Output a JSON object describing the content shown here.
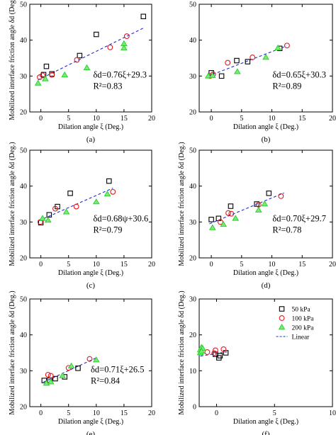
{
  "series_styles": {
    "50": {
      "marker": "square",
      "stroke": "#000000",
      "fill": "none"
    },
    "100": {
      "marker": "circle",
      "stroke": "#e8181f",
      "fill": "none"
    },
    "200": {
      "marker": "triangle",
      "stroke": "#2ed12e",
      "fill": "#7de87d"
    },
    "fit": {
      "stroke": "#1f2bd1",
      "dash": "4,3"
    }
  },
  "chart_data": [
    {
      "type": "scatter",
      "panel": "(a)",
      "xlabel": "Dilation angle ξ (Deg.)",
      "ylabel": "Mobilized interface friction angle δd (Deg.)",
      "xlim": [
        -2,
        20
      ],
      "ylim": [
        20,
        50
      ],
      "xticks": [
        "0",
        "5",
        "10",
        "15",
        "20"
      ],
      "yticks": [
        "20",
        "30",
        "40",
        "50"
      ],
      "equation": "δd=0.76ξ+29.3",
      "r2": "R²=0.83",
      "fit": {
        "slope": 0.76,
        "intercept": 29.3,
        "x_range": [
          -0.5,
          18.7
        ]
      },
      "series": [
        {
          "key": "50",
          "points": [
            [
              0.5,
              30.4
            ],
            [
              1.0,
              32.7
            ],
            [
              2.0,
              30.6
            ],
            [
              7.0,
              35.7
            ],
            [
              10.0,
              41.6
            ],
            [
              18.5,
              46.6
            ]
          ]
        },
        {
          "key": "100",
          "points": [
            [
              -0.2,
              29.7
            ],
            [
              0.3,
              30.2
            ],
            [
              2.0,
              30.3
            ],
            [
              6.5,
              34.5
            ],
            [
              12.5,
              38.0
            ],
            [
              15.5,
              41.1
            ]
          ]
        },
        {
          "key": "200",
          "points": [
            [
              -0.5,
              28.0
            ],
            [
              0.8,
              29.2
            ],
            [
              4.3,
              30.3
            ],
            [
              8.3,
              32.3
            ],
            [
              15.0,
              39.0
            ],
            [
              15.0,
              37.8
            ]
          ]
        }
      ]
    },
    {
      "type": "scatter",
      "panel": "(b)",
      "xlabel": "Dilation angle ξ (Deg.)",
      "ylabel": "",
      "xlim": [
        -2,
        20
      ],
      "ylim": [
        20,
        50
      ],
      "xticks": [
        "0",
        "5",
        "10",
        "15",
        "20"
      ],
      "yticks": [
        "20",
        "30",
        "40",
        "50"
      ],
      "equation": "δd=0.65ξ+30.3",
      "r2": "R²=0.89",
      "fit": {
        "slope": 0.65,
        "intercept": 30.3,
        "x_range": [
          -0.5,
          12.0
        ]
      },
      "series": [
        {
          "key": "50",
          "points": [
            [
              0.0,
              30.9
            ],
            [
              1.7,
              30.0
            ],
            [
              4.2,
              34.3
            ],
            [
              6.0,
              34.0
            ],
            [
              11.3,
              37.7
            ]
          ]
        },
        {
          "key": "100",
          "points": [
            [
              -0.2,
              30.0
            ],
            [
              0.3,
              30.5
            ],
            [
              2.7,
              33.7
            ],
            [
              6.8,
              35.2
            ],
            [
              12.5,
              38.5
            ]
          ]
        },
        {
          "key": "200",
          "points": [
            [
              -0.5,
              30.0
            ],
            [
              0.2,
              30.1
            ],
            [
              4.3,
              31.2
            ],
            [
              9.0,
              35.2
            ],
            [
              11.0,
              37.8
            ]
          ]
        }
      ]
    },
    {
      "type": "scatter",
      "panel": "(c)",
      "xlabel": "Dilation angle ξ (Deg.)",
      "ylabel": "Mobilized interface friction angle δd (Deg.)",
      "xlim": [
        -2,
        20
      ],
      "ylim": [
        20,
        50
      ],
      "xticks": [
        "0",
        "5",
        "10",
        "15",
        "20"
      ],
      "yticks": [
        "20",
        "30",
        "40",
        "50"
      ],
      "equation": "δd=0.68ψ+30.6",
      "r2": "R²=0.79",
      "fit": {
        "slope": 0.68,
        "intercept": 30.6,
        "x_range": [
          -0.3,
          13.0
        ]
      },
      "series": [
        {
          "key": "50",
          "points": [
            [
              0.0,
              29.8
            ],
            [
              1.5,
              32.0
            ],
            [
              3.0,
              34.3
            ],
            [
              5.3,
              38.0
            ],
            [
              12.3,
              41.4
            ]
          ]
        },
        {
          "key": "100",
          "points": [
            [
              -0.1,
              30.0
            ],
            [
              2.6,
              33.7
            ],
            [
              6.4,
              34.3
            ],
            [
              13.0,
              38.4
            ]
          ]
        },
        {
          "key": "200",
          "points": [
            [
              0.3,
              31.0
            ],
            [
              1.3,
              30.5
            ],
            [
              4.6,
              32.8
            ],
            [
              10.0,
              35.6
            ],
            [
              12.0,
              37.8
            ]
          ]
        }
      ]
    },
    {
      "type": "scatter",
      "panel": "(d)",
      "xlabel": "Dilation angle ξ (Deg.)",
      "ylabel": "Mobilized interface friction angle δd (Deg.)",
      "xlim": [
        -2,
        20
      ],
      "ylim": [
        20,
        50
      ],
      "xticks": [
        "0",
        "5",
        "10",
        "15",
        "20"
      ],
      "yticks": [
        "20",
        "30",
        "40",
        "50"
      ],
      "equation": "δd=0.70ξ+29.7",
      "r2": "R²=0.78",
      "fit": {
        "slope": 0.7,
        "intercept": 29.7,
        "x_range": [
          -0.3,
          12.0
        ]
      },
      "series": [
        {
          "key": "50",
          "points": [
            [
              0.0,
              30.7
            ],
            [
              1.2,
              31.0
            ],
            [
              3.2,
              34.4
            ],
            [
              7.5,
              35.0
            ],
            [
              9.5,
              38.0
            ]
          ]
        },
        {
          "key": "100",
          "points": [
            [
              1.5,
              30.0
            ],
            [
              2.8,
              32.5
            ],
            [
              3.3,
              32.3
            ],
            [
              7.8,
              34.8
            ],
            [
              11.5,
              37.2
            ]
          ]
        },
        {
          "key": "200",
          "points": [
            [
              0.2,
              28.4
            ],
            [
              2.0,
              29.3
            ],
            [
              4.0,
              31.0
            ],
            [
              7.8,
              33.3
            ],
            [
              8.8,
              35.0
            ]
          ]
        }
      ]
    },
    {
      "type": "scatter",
      "panel": "(e)",
      "xlabel": "Dilation angle ξ (Deg.)",
      "ylabel": "Mobilized interface friction angle δd (Deg.)",
      "xlim": [
        -2,
        20
      ],
      "ylim": [
        20,
        50
      ],
      "xticks": [
        "0",
        "5",
        "10",
        "15",
        "20"
      ],
      "yticks": [
        "20",
        "30",
        "40",
        "50"
      ],
      "equation": "δd=0.71ξ+26.5",
      "r2": "R²=0.84",
      "fit": {
        "slope": 0.71,
        "intercept": 26.5,
        "x_range": [
          0.5,
          10.0
        ]
      },
      "series": [
        {
          "key": "50",
          "points": [
            [
              0.6,
              27.3
            ],
            [
              1.6,
              27.4
            ],
            [
              2.6,
              27.8
            ],
            [
              4.3,
              28.3
            ],
            [
              6.7,
              30.7
            ]
          ]
        },
        {
          "key": "100",
          "points": [
            [
              1.3,
              28.9
            ],
            [
              1.8,
              28.6
            ],
            [
              5.0,
              30.8
            ],
            [
              8.8,
              33.3
            ]
          ]
        },
        {
          "key": "200",
          "points": [
            [
              1.0,
              26.5
            ],
            [
              1.8,
              26.9
            ],
            [
              3.9,
              28.6
            ],
            [
              5.5,
              31.3
            ],
            [
              10.0,
              33.0
            ]
          ]
        }
      ]
    },
    {
      "type": "scatter",
      "panel": "(f)",
      "xlabel": "Dilation angle ξ (Deg.)",
      "ylabel": "Mobilized interface friction angle δd (Deg.)",
      "xlim": [
        -1.5,
        10
      ],
      "ylim": [
        0,
        30
      ],
      "xticks": [
        "0",
        "5",
        "10"
      ],
      "yticks": [
        "0",
        "10",
        "20",
        "30"
      ],
      "equation": "",
      "r2": "",
      "fit": {
        "slope": 0.5,
        "intercept": 14.8,
        "x_range": [
          -1.4,
          0.9
        ]
      },
      "legend": {
        "position": "top-right",
        "entries": [
          {
            "key": "50",
            "label": "50  kPa"
          },
          {
            "key": "100",
            "label": "100 kPa"
          },
          {
            "key": "200",
            "label": "200 kPa"
          },
          {
            "key": "fit",
            "label": "Linear"
          }
        ]
      },
      "series": [
        {
          "key": "50",
          "points": [
            [
              0.2,
              13.6
            ],
            [
              0.3,
              14.2
            ],
            [
              -0.1,
              14.6
            ],
            [
              0.8,
              15.0
            ]
          ]
        },
        {
          "key": "100",
          "points": [
            [
              -0.8,
              15.2
            ],
            [
              -0.1,
              15.7
            ],
            [
              0.6,
              16.0
            ],
            [
              -0.2,
              14.9
            ]
          ]
        },
        {
          "key": "200",
          "points": [
            [
              -1.4,
              15.8
            ],
            [
              -1.3,
              16.5
            ],
            [
              -1.4,
              15.0
            ],
            [
              -1.2,
              16.2
            ],
            [
              -1.3,
              15.4
            ]
          ]
        }
      ]
    }
  ]
}
